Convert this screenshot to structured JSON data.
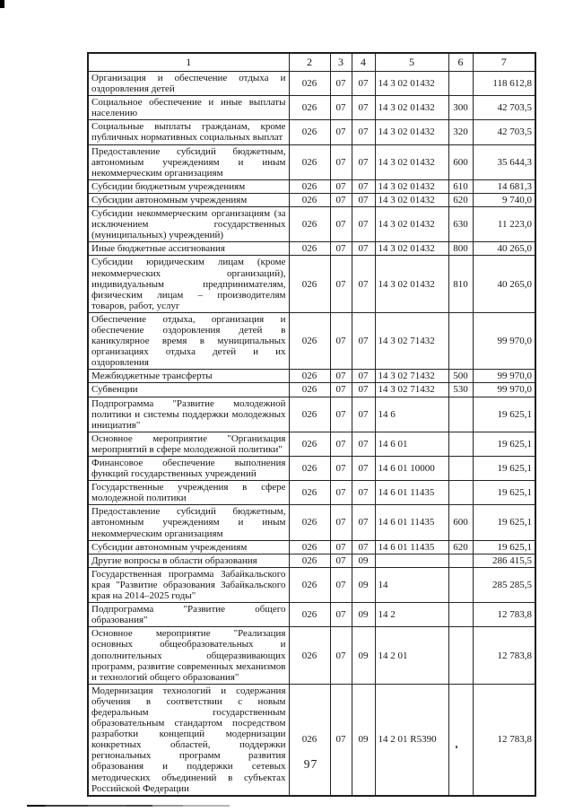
{
  "page": {
    "number": "97"
  },
  "table": {
    "columns": [
      "1",
      "2",
      "3",
      "4",
      "5",
      "6",
      "7"
    ],
    "rows": [
      [
        "Организация и обеспечение отдыха и оздоровления детей",
        "026",
        "07",
        "07",
        "14 3 02 01432",
        "",
        "118 612,8"
      ],
      [
        "Социальное обеспечение и иные выплаты населению",
        "026",
        "07",
        "07",
        "14 3 02 01432",
        "300",
        "42 703,5"
      ],
      [
        "Социальные выплаты гражданам, кроме публичных нормативных социальных выплат",
        "026",
        "07",
        "07",
        "14 3 02 01432",
        "320",
        "42 703,5"
      ],
      [
        "Предоставление субсидий бюджетным, автономным учреждениям и иным некоммерческим организациям",
        "026",
        "07",
        "07",
        "14 3 02 01432",
        "600",
        "35 644,3"
      ],
      [
        "Субсидии бюджетным учреждениям",
        "026",
        "07",
        "07",
        "14 3 02 01432",
        "610",
        "14 681,3"
      ],
      [
        "Субсидии автономным учреждениям",
        "026",
        "07",
        "07",
        "14 3 02 01432",
        "620",
        "9 740,0"
      ],
      [
        "Субсидии некоммерческим организациям (за исключением государственных (муниципальных) учреждений)",
        "026",
        "07",
        "07",
        "14 3 02 01432",
        "630",
        "11 223,0"
      ],
      [
        "Иные бюджетные ассигнования",
        "026",
        "07",
        "07",
        "14 3 02 01432",
        "800",
        "40 265,0"
      ],
      [
        "Субсидии юридическим лицам (кроме некоммерческих организаций), индивидуальным предпринимателям, физическим лицам – производителям товаров, работ, услуг",
        "026",
        "07",
        "07",
        "14 3 02 01432",
        "810",
        "40 265,0"
      ],
      [
        "Обеспечение отдыха, организация и обеспечение оздоровления детей в каникулярное время в муниципальных организациях отдыха детей и их оздоровления",
        "026",
        "07",
        "07",
        "14 3 02 71432",
        "",
        "99 970,0"
      ],
      [
        "Межбюджетные трансферты",
        "026",
        "07",
        "07",
        "14 3 02 71432",
        "500",
        "99 970,0"
      ],
      [
        "Субвенции",
        "026",
        "07",
        "07",
        "14 3 02 71432",
        "530",
        "99 970,0"
      ],
      [
        "Подпрограмма \"Развитие молодежной политики и системы поддержки молодежных инициатив\"",
        "026",
        "07",
        "07",
        "14 6",
        "",
        "19 625,1"
      ],
      [
        "Основное мероприятие \"Организация мероприятий в сфере молодежной политики\"",
        "026",
        "07",
        "07",
        "14 6 01",
        "",
        "19 625,1"
      ],
      [
        "Финансовое обеспечение выполнения функций государственных учреждений",
        "026",
        "07",
        "07",
        "14 6 01 10000",
        "",
        "19 625,1"
      ],
      [
        "Государственные учреждения в сфере молодежной политики",
        "026",
        "07",
        "07",
        "14 6 01 11435",
        "",
        "19 625,1"
      ],
      [
        "Предоставление субсидий бюджетным, автономным учреждениям и иным некоммерческим организациям",
        "026",
        "07",
        "07",
        "14 6 01 11435",
        "600",
        "19 625,1"
      ],
      [
        "Субсидии автономным учреждениям",
        "026",
        "07",
        "07",
        "14 6 01 11435",
        "620",
        "19 625,1"
      ],
      [
        "Другие вопросы в области образования",
        "026",
        "07",
        "09",
        "",
        "",
        "286 415,5"
      ],
      [
        "Государственная программа Забайкальского края \"Развитие образования Забайкальского края на 2014–2025 годы\"",
        "026",
        "07",
        "09",
        "14",
        "",
        "285 285,5"
      ],
      [
        "Подпрограмма \"Развитие общего образования\"",
        "026",
        "07",
        "09",
        "14 2",
        "",
        "12 783,8"
      ],
      [
        "Основное мероприятие \"Реализация основных общеобразовательных и дополнительных общеразвивающих программ, развитие современных механизмов и технологий общего образования\"",
        "026",
        "07",
        "09",
        "14 2 01",
        "",
        "12 783,8"
      ],
      [
        "Модернизация технологий и содержания обучения в соответствии с новым федеральным государственным образовательным стандартом посредством разработки концепций модернизации конкретных областей, поддержки региональных программ развития образования и поддержки сетевых методических объединений в субъектах Российской Федерации",
        "026",
        "07",
        "09",
        "14 2 01 R5390",
        "",
        "12 783,8"
      ]
    ]
  }
}
